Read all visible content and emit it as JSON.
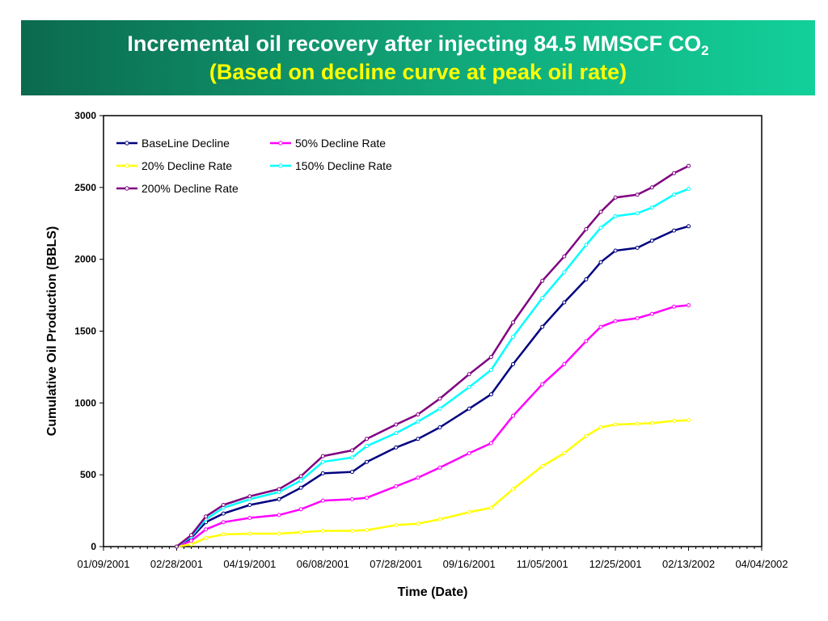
{
  "title": {
    "line1": "Incremental oil recovery after injecting 84.5 MMSCF CO",
    "subscript": "2",
    "line2": "(Based on decline curve at peak oil rate)"
  },
  "chart_data": {
    "type": "line",
    "title": "Incremental oil recovery after injecting 84.5 MMSCF CO2 (Based on decline curve at peak oil rate)",
    "xlabel": "Time (Date)",
    "ylabel": "Cumulative Oil Production (BBLS)",
    "x_ticks": [
      "01/09/2001",
      "02/28/2001",
      "04/19/2001",
      "06/08/2001",
      "07/28/2001",
      "09/16/2001",
      "11/05/2001",
      "12/25/2001",
      "02/13/2002",
      "04/04/2002"
    ],
    "y_ticks": [
      "0",
      "500",
      "1000",
      "1500",
      "2000",
      "2500",
      "3000"
    ],
    "xlim": [
      "2001-01-09",
      "2002-04-04"
    ],
    "ylim": [
      0,
      3000
    ],
    "grid": false,
    "legend": "top-left inside",
    "x": [
      "2001-02-28",
      "2001-03-10",
      "2001-03-20",
      "2001-04-01",
      "2001-04-19",
      "2001-05-09",
      "2001-05-24",
      "2001-06-08",
      "2001-06-28",
      "2001-07-08",
      "2001-07-28",
      "2001-08-12",
      "2001-08-27",
      "2001-09-16",
      "2001-10-01",
      "2001-10-16",
      "2001-11-05",
      "2001-11-20",
      "2001-12-05",
      "2001-12-15",
      "2001-12-25",
      "2002-01-09",
      "2002-01-19",
      "2002-02-03",
      "2002-02-13"
    ],
    "series": [
      {
        "name": "BaseLine Decline",
        "color": "#000080",
        "values": [
          0,
          60,
          170,
          230,
          290,
          330,
          410,
          510,
          520,
          590,
          690,
          750,
          830,
          960,
          1060,
          1270,
          1530,
          1700,
          1860,
          1980,
          2060,
          2080,
          2130,
          2200,
          2230
        ]
      },
      {
        "name": "50% Decline Rate",
        "color": "#ff00ff",
        "values": [
          0,
          40,
          120,
          170,
          200,
          220,
          260,
          320,
          330,
          340,
          420,
          480,
          550,
          650,
          720,
          910,
          1130,
          1270,
          1430,
          1530,
          1570,
          1590,
          1620,
          1670,
          1680
        ]
      },
      {
        "name": "20% Decline Rate",
        "color": "#ffff00",
        "values": [
          0,
          15,
          60,
          85,
          90,
          90,
          100,
          110,
          110,
          115,
          150,
          160,
          190,
          240,
          270,
          400,
          560,
          650,
          770,
          830,
          850,
          855,
          860,
          875,
          880
        ]
      },
      {
        "name": "150% Decline Rate",
        "color": "#00ffff",
        "values": [
          0,
          70,
          190,
          270,
          330,
          380,
          460,
          590,
          620,
          700,
          790,
          870,
          960,
          1110,
          1230,
          1460,
          1730,
          1910,
          2100,
          2220,
          2300,
          2320,
          2360,
          2450,
          2490
        ]
      },
      {
        "name": "200% Decline Rate",
        "color": "#800080",
        "values": [
          0,
          80,
          210,
          290,
          350,
          400,
          490,
          630,
          670,
          750,
          850,
          920,
          1030,
          1200,
          1320,
          1560,
          1850,
          2020,
          2210,
          2330,
          2430,
          2450,
          2500,
          2600,
          2650
        ]
      }
    ]
  }
}
